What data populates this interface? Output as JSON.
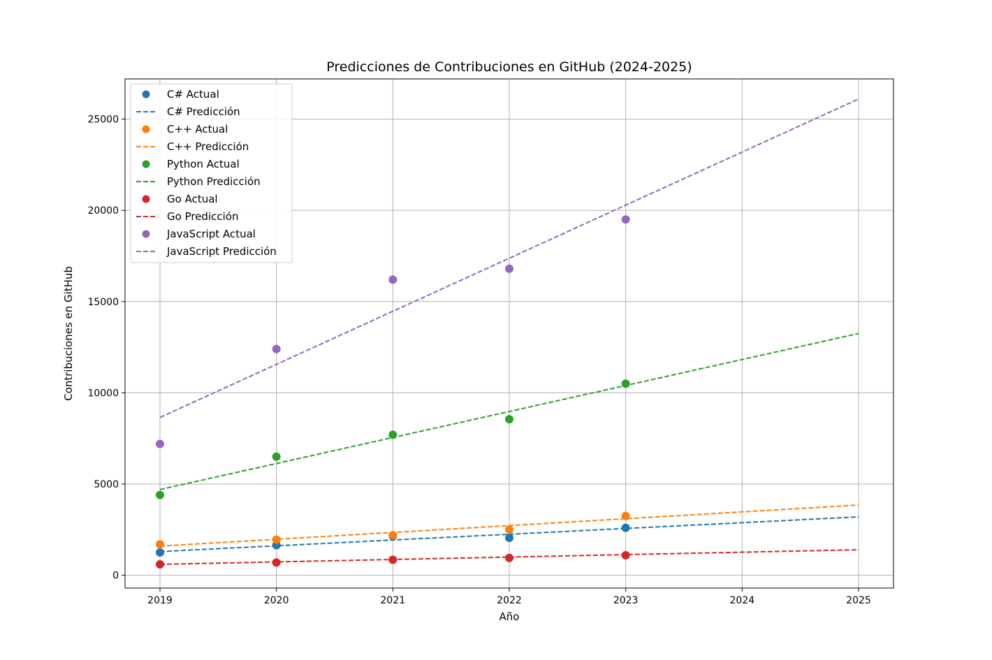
{
  "chart_data": {
    "type": "scatter",
    "title": "Predicciones de Contribuciones en GitHub (2024-2025)",
    "xlabel": "Año",
    "ylabel": "Contribuciones en GitHub",
    "xlim": [
      2018.7,
      2025.3
    ],
    "ylim": [
      -700,
      27200
    ],
    "xticks": [
      2019,
      2020,
      2021,
      2022,
      2023,
      2024,
      2025
    ],
    "yticks": [
      0,
      5000,
      10000,
      15000,
      20000,
      25000
    ],
    "grid": true,
    "legend_position": "top-left",
    "series": [
      {
        "language": "C#",
        "actual_label": "C# Actual",
        "prediction_label": "C# Predicción",
        "color": "#1f77b4",
        "actual": [
          [
            2019,
            1250
          ],
          [
            2020,
            1650
          ],
          [
            2021,
            2150
          ],
          [
            2022,
            2050
          ],
          [
            2023,
            2600
          ]
        ],
        "prediction": [
          [
            2019,
            1300
          ],
          [
            2025,
            3200
          ]
        ]
      },
      {
        "language": "C++",
        "actual_label": "C++ Actual",
        "prediction_label": "C++ Predicción",
        "color": "#ff7f0e",
        "actual": [
          [
            2019,
            1700
          ],
          [
            2020,
            1950
          ],
          [
            2021,
            2200
          ],
          [
            2022,
            2500
          ],
          [
            2023,
            3250
          ]
        ],
        "prediction": [
          [
            2019,
            1600
          ],
          [
            2025,
            3850
          ]
        ]
      },
      {
        "language": "Python",
        "actual_label": "Python Actual",
        "prediction_label": "Python Predicción",
        "color": "#2ca02c",
        "actual": [
          [
            2019,
            4400
          ],
          [
            2020,
            6500
          ],
          [
            2021,
            7700
          ],
          [
            2022,
            8550
          ],
          [
            2023,
            10500
          ]
        ],
        "prediction": [
          [
            2019,
            4700
          ],
          [
            2025,
            13250
          ]
        ]
      },
      {
        "language": "Go",
        "actual_label": "Go Actual",
        "prediction_label": "Go Predicción",
        "color": "#d62728",
        "actual": [
          [
            2019,
            600
          ],
          [
            2020,
            700
          ],
          [
            2021,
            850
          ],
          [
            2022,
            950
          ],
          [
            2023,
            1100
          ]
        ],
        "prediction": [
          [
            2019,
            600
          ],
          [
            2025,
            1400
          ]
        ]
      },
      {
        "language": "JavaScript",
        "actual_label": "JavaScript Actual",
        "prediction_label": "JavaScript Predicción",
        "color": "#9467bd",
        "actual": [
          [
            2019,
            7200
          ],
          [
            2020,
            12400
          ],
          [
            2021,
            16200
          ],
          [
            2022,
            16800
          ],
          [
            2023,
            19500
          ]
        ],
        "prediction": [
          [
            2019,
            8650
          ],
          [
            2025,
            26100
          ]
        ]
      }
    ]
  }
}
